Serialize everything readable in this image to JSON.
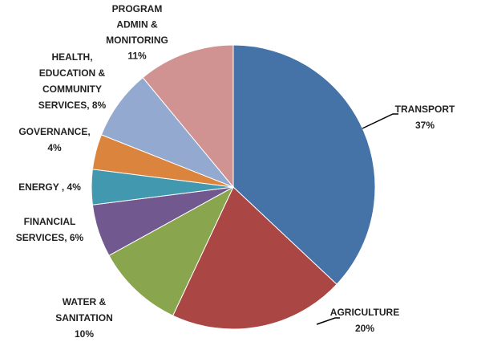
{
  "chart_data": {
    "type": "pie",
    "values": [
      37,
      20,
      10,
      6,
      4,
      4,
      8,
      11
    ],
    "value_labels": [
      "TRANSPORT\n37%",
      "AGRICULTURE\n20%",
      "WATER &\nSANITATION\n10%",
      "FINANCIAL\nSERVICES, 6%",
      "ENERGY , 4%",
      "GOVERNANCE,\n4%",
      "HEALTH,\nEDUCATION &\nCOMMUNITY\nSERVICES, 8%",
      "PROGRAM\nADMIN &\nMONITORING\n11%"
    ],
    "colors": [
      "#4572a7",
      "#aa4643",
      "#89a54e",
      "#71588f",
      "#4198af",
      "#db843d",
      "#93a9cf",
      "#d19392"
    ]
  }
}
